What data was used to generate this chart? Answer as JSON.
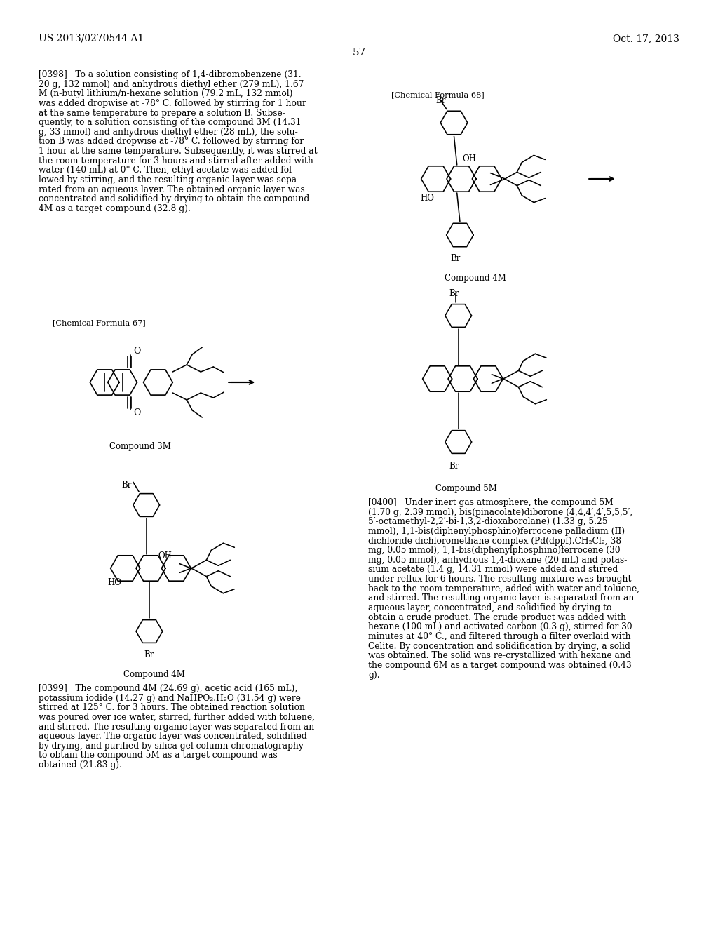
{
  "background_color": "#ffffff",
  "text_color": "#000000",
  "header_left": "US 2013/0270544 A1",
  "header_right": "Oct. 17, 2013",
  "page_number": "57",
  "paragraph_0398": "[0398]   To a solution consisting of 1,4-dibromobenzene (31.\n20 g, 132 mmol) and anhydrous diethyl ether (279 mL), 1.67\nM (n-butyl lithium/n-hexane solution (79.2 mL, 132 mmol)\nwas added dropwise at -78° C. followed by stirring for 1 hour\nat the same temperature to prepare a solution B. Subse-\nquently, to a solution consisting of the compound 3M (14.31\ng, 33 mmol) and anhydrous diethyl ether (28 mL), the solu-\ntion B was added dropwise at -78° C. followed by stirring for\n1 hour at the same temperature. Subsequently, it was stirred at\nthe room temperature for 3 hours and stirred after added with\nwater (140 mL) at 0° C. Then, ethyl acetate was added fol-\nlowed by stirring, and the resulting organic layer was sepa-\nrated from an aqueous layer. The obtained organic layer was\nconcentrated and solidified by drying to obtain the compound\n4M as a target compound (32.8 g).",
  "paragraph_0399": "[0399]   The compound 4M (24.69 g), acetic acid (165 mL),\npotassium iodide (14.27 g) and NaHPO₂.H₂O (31.54 g) were\nstirred at 125° C. for 3 hours. The obtained reaction solution\nwas poured over ice water, stirred, further added with toluene,\nand stirred. The resulting organic layer was separated from an\naqueous layer. The organic layer was concentrated, solidified\nby drying, and purified by silica gel column chromatography\nto obtain the compound 5M as a target compound was\nobtained (21.83 g).",
  "paragraph_0400": "[0400]   Under inert gas atmosphere, the compound 5M\n(1.70 g, 2.39 mmol), bis(pinacolate)diborone (4,4,4′,4′,5,5,5′,\n5′-octamethyl-2,2′-bi-1,3,2-dioxaborolane) (1.33 g, 5.25\nmmol), 1,1-bis(diphenylphosphino)ferrocene palladium (II)\ndichloride dichloromethane complex (Pd(dppf).CH₂Cl₂, 38\nmg, 0.05 mmol), 1,1-bis(diphenylphosphino)ferrocene (30\nmg, 0.05 mmol), anhydrous 1,4-dioxane (20 mL) and potas-\nsium acetate (1.4 g, 14.31 mmol) were added and stirred\nunder reflux for 6 hours. The resulting mixture was brought\nback to the room temperature, added with water and toluene,\nand stirred. The resulting organic layer is separated from an\naqueous layer, concentrated, and solidified by drying to\nobtain a crude product. The crude product was added with\nhexane (100 mL) and activated carbon (0.3 g), stirred for 30\nminutes at 40° C., and filtered through a filter overlaid with\nCelite. By concentration and solidification by drying, a solid\nwas obtained. The solid was re-crystallized with hexane and\nthe compound 6M as a target compound was obtained (0.43\ng).",
  "chem_formula_68_label": "[Chemical Formula 68]",
  "chem_formula_67_label": "[Chemical Formula 67]",
  "compound_4m_label": "Compound 4M",
  "compound_3m_label": "Compound 3M",
  "compound_5m_label": "Compound 5M"
}
